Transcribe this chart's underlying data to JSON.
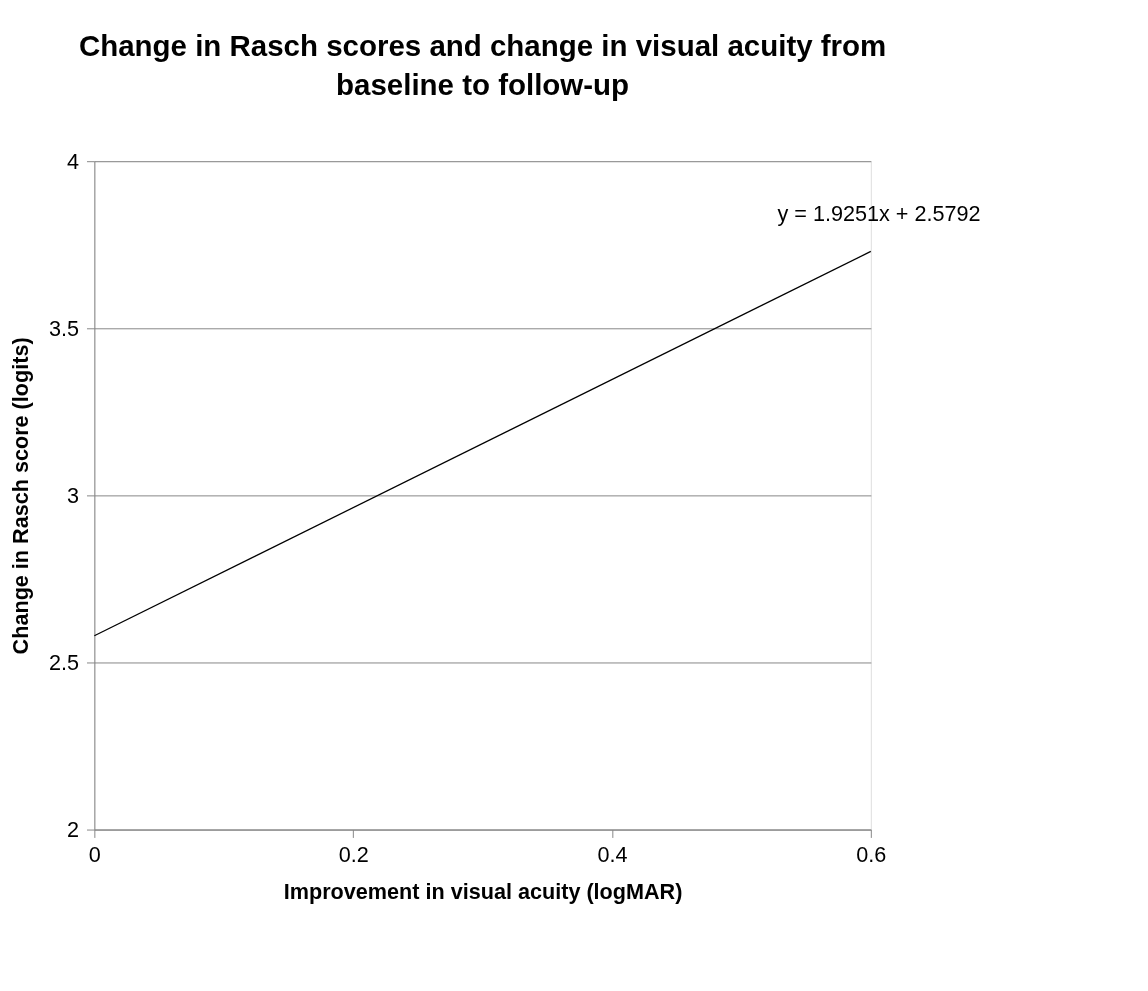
{
  "chart_data": {
    "type": "line",
    "title": "Change in Rasch scores and change in visual acuity from baseline to follow-up",
    "xlabel": "Improvement in visual acuity (logMAR)",
    "ylabel": "Change in Rasch score (logits)",
    "series": [
      {
        "x": [
          0,
          0.6
        ],
        "values": [
          2.58,
          3.73
        ],
        "color": "#000000"
      }
    ],
    "xlim": [
      0,
      0.6
    ],
    "xticks": [
      0,
      0.2,
      0.4,
      0.6
    ],
    "ylim": [
      2,
      4
    ],
    "yticks": [
      2,
      2.5,
      3,
      3.5,
      4
    ],
    "grid": "y",
    "legend": false,
    "marker": "none",
    "line_style": "solid",
    "annotations": [
      {
        "text": "y = 1.9251x + 2.5792",
        "x": 0.6,
        "y": 3.73
      }
    ]
  }
}
